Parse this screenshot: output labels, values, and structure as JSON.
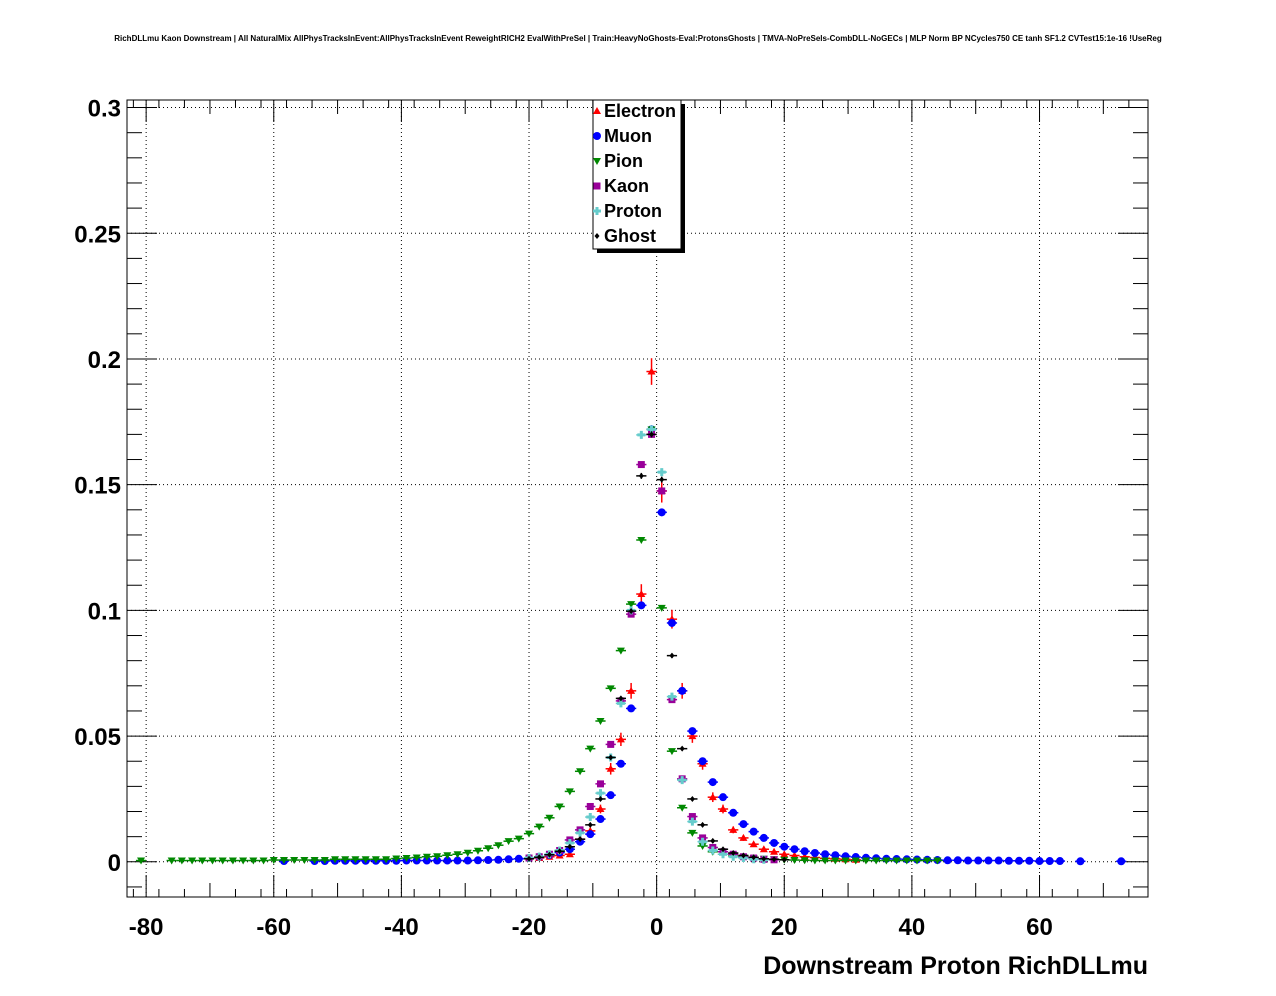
{
  "chart_data": {
    "type": "scatter",
    "title": "RichDLLmu Kaon Downstream | All NaturalMix AllPhysTracksInEvent:AllPhysTracksInEvent ReweightRICH2 EvalWithPreSel | Train:HeavyNoGhosts-Eval:ProtonsGhosts | TMVA-NoPreSels-CombDLL-NoGECs | MLP Norm BP NCycles750 CE tanh SF1.2 CVTest15:1e-16 !UseReg",
    "xlabel": "Downstream Proton RichDLLmu",
    "ylabel": "",
    "xlim": [
      -83,
      77
    ],
    "ylim": [
      -0.014,
      0.303
    ],
    "xticks": [
      -80,
      -60,
      -40,
      -20,
      0,
      20,
      40,
      60
    ],
    "xtick_labels": [
      "-80",
      "-60",
      "-40",
      "-20",
      "0",
      "20",
      "40",
      "60"
    ],
    "yticks": [
      0,
      0.05,
      0.1,
      0.15,
      0.2,
      0.25,
      0.3
    ],
    "ytick_labels": [
      "0",
      "0.05",
      "0.1",
      "0.15",
      "0.2",
      "0.25",
      "0.3"
    ],
    "grid": true,
    "legend_position": "top-center",
    "bin_width": 1.6,
    "series": [
      {
        "name": "Electron",
        "color": "#ff0000",
        "marker": "triangle-up",
        "err_scale": 0.012,
        "x_start": -18.4,
        "y": [
          0.0015,
          0.002,
          0.0025,
          0.003,
          0.009,
          0.0123,
          0.021,
          0.037,
          0.0487,
          0.068,
          0.1065,
          0.195,
          0.1475,
          0.0965,
          0.068,
          0.05,
          0.039,
          0.0257,
          0.021,
          0.0127,
          0.0095,
          0.007,
          0.005,
          0.004,
          0.003,
          0.0025,
          0.002,
          0.0017,
          0.0014,
          0.0012,
          0.001,
          0.0008
        ]
      },
      {
        "name": "Muon",
        "color": "#0000ff",
        "marker": "circle",
        "err_scale": 0.004,
        "x_start": -58.4,
        "y": [
          0.0003,
          null,
          null,
          0.0003,
          0.0003,
          0.0004,
          0.0004,
          0.0004,
          0.0004,
          0.0004,
          0.0004,
          0.0004,
          0.0005,
          0.0005,
          0.0005,
          0.0005,
          0.0005,
          0.0005,
          0.0005,
          0.0006,
          0.0007,
          0.0008,
          0.001,
          0.0012,
          0.0015,
          0.002,
          0.0027,
          0.0037,
          0.005,
          0.008,
          0.011,
          0.017,
          0.0265,
          0.039,
          0.061,
          0.102,
          0.172,
          0.139,
          0.095,
          0.068,
          0.052,
          0.04,
          0.0317,
          0.0257,
          0.0195,
          0.015,
          0.012,
          0.0095,
          0.0075,
          0.006,
          0.005,
          0.0042,
          0.0035,
          0.003,
          0.0026,
          0.0022,
          0.0019,
          0.0016,
          0.0014,
          0.0012,
          0.0011,
          0.001,
          0.0009,
          0.0008,
          0.0007,
          0.0006,
          0.0006,
          0.0005,
          0.0005,
          0.0005,
          0.0005,
          0.0004,
          0.0004,
          0.0004,
          0.0003,
          0.0003,
          0.0003,
          null,
          0.0002,
          null,
          null,
          null,
          0.0002
        ]
      },
      {
        "name": "Pion",
        "color": "#008800",
        "marker": "triangle-down",
        "err_scale": 0.002,
        "x_start": -80.8,
        "y": [
          0.0005,
          null,
          null,
          0.0005,
          0.0005,
          0.0005,
          0.0005,
          0.0005,
          0.0005,
          0.0005,
          0.0005,
          0.0005,
          0.0005,
          0.0007,
          0.0007,
          0.0007,
          0.0007,
          0.0007,
          0.0007,
          0.001,
          0.001,
          0.001,
          0.001,
          0.001,
          0.001,
          0.0013,
          0.0015,
          0.0017,
          0.002,
          0.0022,
          0.0026,
          0.003,
          0.0036,
          0.0044,
          0.0054,
          0.0066,
          0.0082,
          0.0092,
          0.0112,
          0.014,
          0.0175,
          0.022,
          0.028,
          0.036,
          0.045,
          0.056,
          0.069,
          0.084,
          0.1025,
          0.128,
          0.172,
          0.101,
          0.044,
          0.0215,
          0.0115,
          0.0063,
          0.004,
          0.003,
          0.0023,
          0.0018,
          0.0015,
          0.0012,
          0.001,
          0.0008,
          0.0007,
          0.0006,
          0.0005,
          0.0005,
          0.0005,
          0.0005,
          0.0005,
          0.0005,
          0.0005,
          0.0005,
          0.0005,
          0.0005,
          0.0005,
          0.0005,
          0.0005
        ]
      },
      {
        "name": "Kaon",
        "color": "#990099",
        "marker": "square",
        "err_scale": 0.003,
        "x_start": -20.0,
        "y": [
          0.0015,
          0.002,
          0.003,
          0.0045,
          0.0087,
          0.0127,
          0.022,
          0.031,
          0.0467,
          0.064,
          0.0985,
          0.158,
          0.17,
          0.1475,
          0.0645,
          0.033,
          0.018,
          0.0095,
          0.0057,
          0.004,
          0.003,
          0.002,
          0.0015,
          0.001,
          0.0008
        ]
      },
      {
        "name": "Proton",
        "color": "#66cccc",
        "marker": "cross",
        "err_scale": 0.003,
        "x_start": -20.0,
        "y": [
          0.0015,
          0.002,
          0.003,
          0.0045,
          0.0075,
          0.0115,
          0.0178,
          0.0273,
          0.0415,
          0.063,
          0.1,
          0.1698,
          0.172,
          0.155,
          0.0657,
          0.0325,
          0.016,
          0.008,
          0.0045,
          0.003,
          0.002,
          0.0015,
          0.001,
          0.0008
        ]
      },
      {
        "name": "Ghost",
        "color": "#000000",
        "marker": "diamond",
        "err_scale": 0.003,
        "x_start": -20.0,
        "y": [
          0.0012,
          0.0018,
          0.0028,
          0.0042,
          0.006,
          0.009,
          0.0147,
          0.025,
          0.0415,
          0.065,
          0.0997,
          0.1535,
          0.17,
          0.152,
          0.082,
          0.045,
          0.025,
          0.0147,
          0.0083,
          0.005,
          0.0035,
          0.0025,
          0.0018,
          0.0012,
          0.001,
          0.0008
        ]
      }
    ]
  }
}
